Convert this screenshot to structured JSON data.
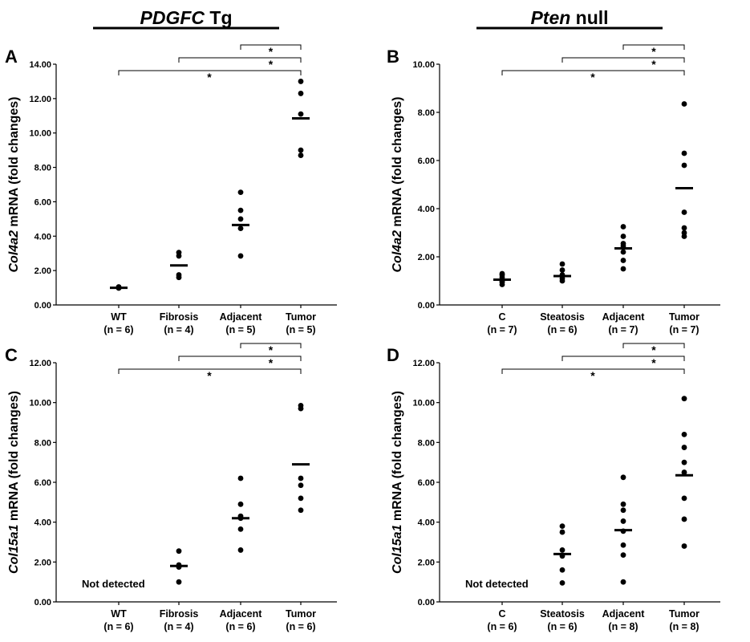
{
  "group_titles": [
    {
      "italic": "PDGFC",
      "rest": " Tg"
    },
    {
      "italic": "Pten",
      "rest": " null"
    }
  ],
  "chart_data": [
    {
      "panel": "A",
      "type": "scatter",
      "ylabel": {
        "italic": "Col4a2",
        "rest": " mRNA (fold changes)"
      },
      "ylim": [
        0,
        14
      ],
      "yticks": [
        "0.00",
        "2.00",
        "4.00",
        "6.00",
        "8.00",
        "10.00",
        "12.00",
        "14.00"
      ],
      "categories": [
        "WT",
        "Fibrosis",
        "Adjacent",
        "Tumor"
      ],
      "n_labels": [
        "(n = 6)",
        "(n = 4)",
        "(n = 5)",
        "(n = 5)"
      ],
      "points": [
        [
          1.0,
          1.02,
          1.05,
          0.98,
          1.0,
          1.03
        ],
        [
          1.6,
          1.75,
          2.85,
          3.05
        ],
        [
          2.85,
          4.45,
          5.0,
          5.5,
          6.55
        ],
        [
          8.7,
          9.0,
          11.1,
          12.3,
          13.0
        ]
      ],
      "means": [
        1.0,
        2.3,
        4.65,
        10.85
      ],
      "brackets": [
        {
          "from": 0,
          "to": 3,
          "label": "*"
        },
        {
          "from": 1,
          "to": 3,
          "label": "*"
        },
        {
          "from": 2,
          "to": 3,
          "label": "*"
        }
      ],
      "annotation": ""
    },
    {
      "panel": "B",
      "type": "scatter",
      "ylabel": {
        "italic": "Col4a2",
        "rest": " mRNA (fold changes)"
      },
      "ylim": [
        0,
        10
      ],
      "yticks": [
        "0.00",
        "2.00",
        "4.00",
        "6.00",
        "8.00",
        "10.00"
      ],
      "categories": [
        "C",
        "Steatosis",
        "Adjacent",
        "Tumor"
      ],
      "n_labels": [
        "(n = 7)",
        "(n = 6)",
        "(n = 7)",
        "(n = 7)"
      ],
      "points": [
        [
          0.85,
          0.95,
          1.05,
          1.15,
          1.25,
          1.3,
          1.0
        ],
        [
          1.0,
          1.1,
          1.25,
          1.45,
          1.7,
          1.2
        ],
        [
          1.5,
          1.85,
          2.2,
          2.45,
          2.55,
          2.85,
          3.25
        ],
        [
          2.85,
          3.2,
          3.85,
          5.8,
          6.3,
          8.35,
          3.0
        ]
      ],
      "means": [
        1.05,
        1.2,
        2.35,
        4.85
      ],
      "brackets": [
        {
          "from": 0,
          "to": 3,
          "label": "*"
        },
        {
          "from": 1,
          "to": 3,
          "label": "*"
        },
        {
          "from": 2,
          "to": 3,
          "label": "*"
        }
      ],
      "annotation": ""
    },
    {
      "panel": "C",
      "type": "scatter",
      "ylabel": {
        "italic": "Col15a1",
        "rest": " mRNA (fold changes)"
      },
      "ylim": [
        0,
        12
      ],
      "yticks": [
        "0.00",
        "2.00",
        "4.00",
        "6.00",
        "8.00",
        "10.00",
        "12.00"
      ],
      "categories": [
        "WT",
        "Fibrosis",
        "Adjacent",
        "Tumor"
      ],
      "n_labels": [
        "(n = 6)",
        "(n = 4)",
        "(n = 6)",
        "(n = 6)"
      ],
      "points": [
        [],
        [
          1.0,
          1.75,
          1.85,
          2.55
        ],
        [
          2.6,
          3.65,
          4.2,
          4.9,
          6.2,
          4.3
        ],
        [
          4.6,
          5.2,
          5.85,
          6.2,
          9.7,
          9.85
        ]
      ],
      "means": [
        null,
        1.8,
        4.2,
        6.9
      ],
      "brackets": [
        {
          "from": 0,
          "to": 3,
          "label": "*"
        },
        {
          "from": 1,
          "to": 3,
          "label": "*"
        },
        {
          "from": 2,
          "to": 3,
          "label": "*"
        }
      ],
      "annotation": "Not detected"
    },
    {
      "panel": "D",
      "type": "scatter",
      "ylabel": {
        "italic": "Col15a1",
        "rest": " mRNA (fold changes)"
      },
      "ylim": [
        0,
        12
      ],
      "yticks": [
        "0.00",
        "2.00",
        "4.00",
        "6.00",
        "8.00",
        "10.00",
        "12.00"
      ],
      "categories": [
        "C",
        "Steatosis",
        "Adjacent",
        "Tumor"
      ],
      "n_labels": [
        "(n = 6)",
        "(n = 6)",
        "(n = 8)",
        "(n = 8)"
      ],
      "points": [
        [],
        [
          0.95,
          1.6,
          2.3,
          2.6,
          3.5,
          3.8
        ],
        [
          1.0,
          2.35,
          2.85,
          3.55,
          4.05,
          4.6,
          4.9,
          6.25
        ],
        [
          2.8,
          4.15,
          5.2,
          6.5,
          7.0,
          7.75,
          8.4,
          10.2
        ]
      ],
      "means": [
        null,
        2.4,
        3.6,
        6.35
      ],
      "brackets": [
        {
          "from": 0,
          "to": 3,
          "label": "*"
        },
        {
          "from": 1,
          "to": 3,
          "label": "*"
        },
        {
          "from": 2,
          "to": 3,
          "label": "*"
        }
      ],
      "annotation": "Not detected"
    }
  ]
}
